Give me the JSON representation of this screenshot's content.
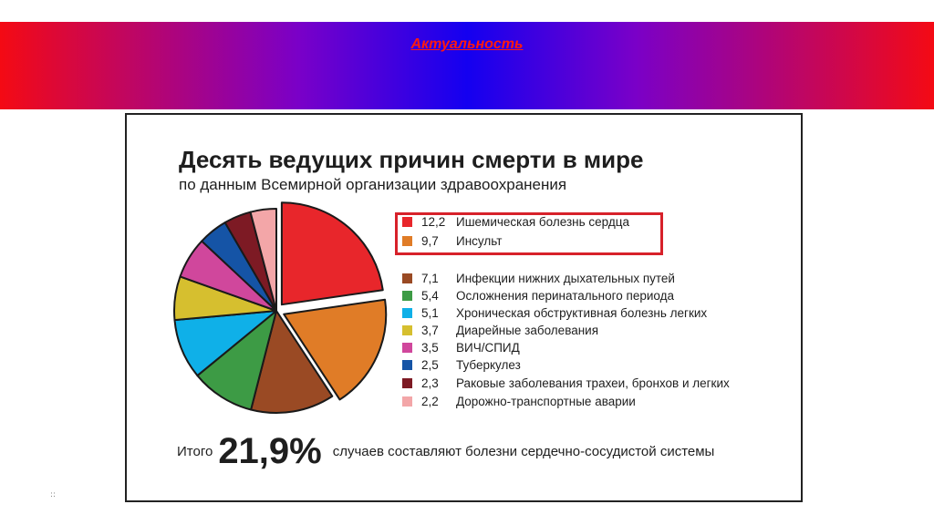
{
  "slide": {
    "heading": "Актуальность",
    "marker": "::"
  },
  "colors": {
    "banner_left": "#f40a14",
    "banner_center": "#1400f0",
    "highlight_border": "#d7212a"
  },
  "chart_data": {
    "type": "pie",
    "title": "Десять ведущих причин смерти в мире",
    "subtitle": "по данным Всемирной организации здравоохранения",
    "legend_position": "right",
    "highlighted": [
      0,
      1
    ],
    "slices": [
      {
        "value": 12.2,
        "value_label": "12,2",
        "label": "Ишемическая болезнь сердца",
        "color": "#e8262b",
        "exploded": true
      },
      {
        "value": 9.7,
        "value_label": "9,7",
        "label": "Инсульт",
        "color": "#e07c27",
        "exploded": true
      },
      {
        "value": 7.1,
        "value_label": "7,1",
        "label": "Инфекции нижних дыхательных путей",
        "color": "#9a4a24",
        "exploded": false
      },
      {
        "value": 5.4,
        "value_label": "5,4",
        "label": "Осложнения перинатального периода",
        "color": "#3d9b45",
        "exploded": false
      },
      {
        "value": 5.1,
        "value_label": "5,1",
        "label": "Хроническая обструктивная болезнь легких",
        "color": "#0fb0e8",
        "exploded": false
      },
      {
        "value": 3.7,
        "value_label": "3,7",
        "label": "Диарейные заболевания",
        "color": "#d6bf2f",
        "exploded": false
      },
      {
        "value": 3.5,
        "value_label": "3,5",
        "label": "ВИЧ/СПИД",
        "color": "#d0479c",
        "exploded": false
      },
      {
        "value": 2.5,
        "value_label": "2,5",
        "label": "Туберкулез",
        "color": "#1554a6",
        "exploded": false
      },
      {
        "value": 2.3,
        "value_label": "2,3",
        "label": "Раковые заболевания трахеи, бронхов и легких",
        "color": "#7d1a24",
        "exploded": false
      },
      {
        "value": 2.2,
        "value_label": "2,2",
        "label": "Дорожно-транспортные аварии",
        "color": "#f3a6a8",
        "exploded": false
      }
    ],
    "total": {
      "prefix": "Итого",
      "value": "21,9%",
      "suffix": "случаев составляют болезни сердечно-сосудистой системы"
    }
  }
}
